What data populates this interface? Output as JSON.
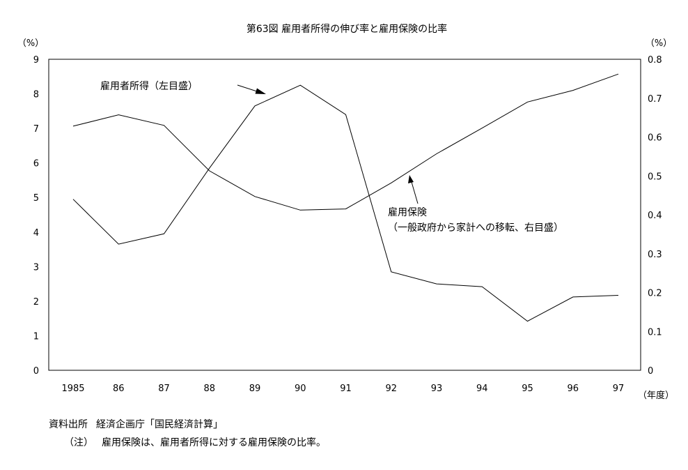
{
  "chart_data": {
    "type": "line",
    "title": "第63図 雇用者所得の伸び率と雇用保険の比率",
    "x_label": "（年度）",
    "categories": [
      "1985",
      "86",
      "87",
      "88",
      "89",
      "90",
      "91",
      "92",
      "93",
      "94",
      "95",
      "96",
      "97"
    ],
    "y_left": {
      "unit_label": "（%）",
      "ylim": [
        0,
        9
      ],
      "ticks": [
        "0",
        "1",
        "2",
        "3",
        "4",
        "5",
        "6",
        "7",
        "8",
        "9"
      ]
    },
    "y_right": {
      "unit_label": "（%）",
      "ylim": [
        0,
        0.8
      ],
      "ticks": [
        "0",
        "0.1",
        "0.2",
        "0.3",
        "0.4",
        "0.5",
        "0.6",
        "0.7",
        "0.8"
      ]
    },
    "series": [
      {
        "name": "雇用者所得（左目盛）",
        "axis": "left",
        "values": [
          4.95,
          3.65,
          3.95,
          5.85,
          7.65,
          8.25,
          7.4,
          2.85,
          2.5,
          2.42,
          1.42,
          2.12,
          2.17
        ]
      },
      {
        "name": "雇用保険（一般政府から家計への移転、右目盛）",
        "label_lines": [
          "雇用保険",
          "（一般政府から家計への移転、右目盛）"
        ],
        "axis": "right",
        "values": [
          0.628,
          0.657,
          0.63,
          0.513,
          0.447,
          0.412,
          0.415,
          0.482,
          0.557,
          0.623,
          0.69,
          0.72,
          0.762
        ]
      }
    ],
    "grid": false,
    "legend": "inline labels with arrows"
  },
  "notes": {
    "source_label": "資料出所",
    "source_text": "経済企画庁「国民経済計算」",
    "note_label": "（注）",
    "note_text": "雇用保険は、雇用者所得に対する雇用保険の比率。"
  }
}
